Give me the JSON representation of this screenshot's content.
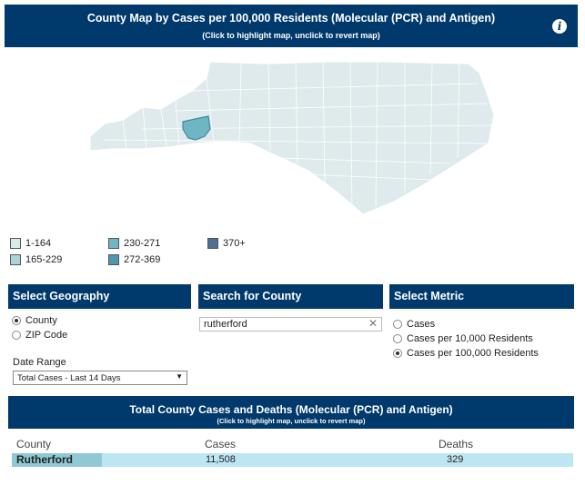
{
  "header": {
    "title": "County Map by Cases per 100,000 Residents (Molecular (PCR) and Antigen)",
    "subtitle": "(Click to highlight map, unclick to revert map)",
    "info_icon": "i"
  },
  "legend": [
    {
      "label": "1-164",
      "color": "#d7ece9"
    },
    {
      "label": "165-229",
      "color": "#a8d5d8"
    },
    {
      "label": "230-271",
      "color": "#6fb6c5"
    },
    {
      "label": "272-369",
      "color": "#4f97b0"
    },
    {
      "label": "370+",
      "color": "#4f6f96"
    }
  ],
  "geography": {
    "heading": "Select Geography",
    "options": [
      "County",
      "ZIP Code"
    ],
    "selected": "County"
  },
  "search": {
    "heading": "Search for County",
    "value": "rutherford",
    "clear_icon": "✕"
  },
  "metric": {
    "heading": "Select Metric",
    "options": [
      "Cases",
      "Cases per 10,000 Residents",
      "Cases per 100,000 Residents"
    ],
    "selected": "Cases per 100,000 Residents"
  },
  "date_range": {
    "label": "Date Range",
    "value": "Total Cases - Last 14 Days",
    "arrow": "▼"
  },
  "table": {
    "title": "Total County Cases and Deaths (Molecular (PCR) and Antigen)",
    "subtitle": "(Click to highlight map, unclick to revert map)",
    "columns": [
      "County",
      "Cases",
      "Deaths"
    ],
    "rows": [
      {
        "county": "Rutherford",
        "cases": "11,508",
        "deaths": "329"
      }
    ]
  },
  "colors": {
    "header_bg": "#00396b",
    "map_fill": "#dfeaec",
    "map_highlight": "#6fb6c5"
  }
}
